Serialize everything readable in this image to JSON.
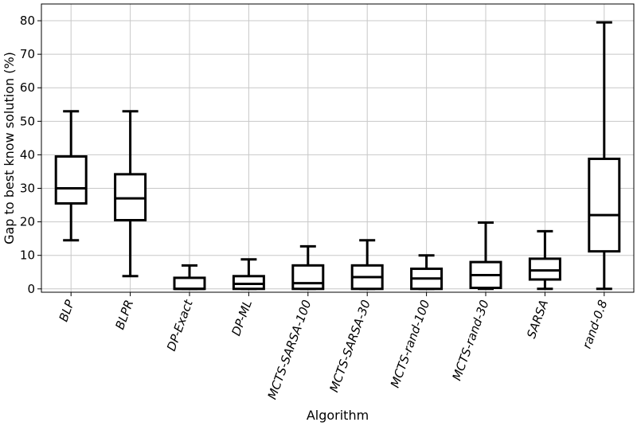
{
  "chart_data": {
    "type": "box",
    "xlabel": "Algorithm",
    "ylabel": "Gap to best know solution (%)",
    "ylim": [
      -1,
      85
    ],
    "yticks": [
      0,
      10,
      20,
      30,
      40,
      50,
      60,
      70,
      80
    ],
    "grid": true,
    "categories": [
      "BLP",
      "BLPR",
      "DP-Exact",
      "DP-ML",
      "MCTS-SARSA-100",
      "MCTS-SARSA-30",
      "MCTS-rand-100",
      "MCTS-rand-30",
      "SARSA",
      "rand-0.8"
    ],
    "boxes": [
      {
        "whisker_low": 14.5,
        "q1": 25.5,
        "median": 30,
        "q3": 39.5,
        "whisker_high": 53
      },
      {
        "whisker_low": 3.8,
        "q1": 20.5,
        "median": 27,
        "q3": 34.2,
        "whisker_high": 53
      },
      {
        "whisker_low": 0,
        "q1": 0,
        "median": 0,
        "q3": 3.3,
        "whisker_high": 7
      },
      {
        "whisker_low": 0,
        "q1": 0,
        "median": 1.5,
        "q3": 3.8,
        "whisker_high": 8.8
      },
      {
        "whisker_low": 0,
        "q1": 0,
        "median": 1.7,
        "q3": 7,
        "whisker_high": 12.7
      },
      {
        "whisker_low": 0,
        "q1": 0,
        "median": 3.5,
        "q3": 7,
        "whisker_high": 14.5
      },
      {
        "whisker_low": 0,
        "q1": 0,
        "median": 3.1,
        "q3": 6,
        "whisker_high": 10
      },
      {
        "whisker_low": 0,
        "q1": 0.3,
        "median": 4.1,
        "q3": 8,
        "whisker_high": 19.8
      },
      {
        "whisker_low": 0,
        "q1": 2.8,
        "median": 5.5,
        "q3": 9,
        "whisker_high": 17.2
      },
      {
        "whisker_low": 0,
        "q1": 11.2,
        "median": 22,
        "q3": 38.8,
        "whisker_high": 79.5
      }
    ]
  }
}
